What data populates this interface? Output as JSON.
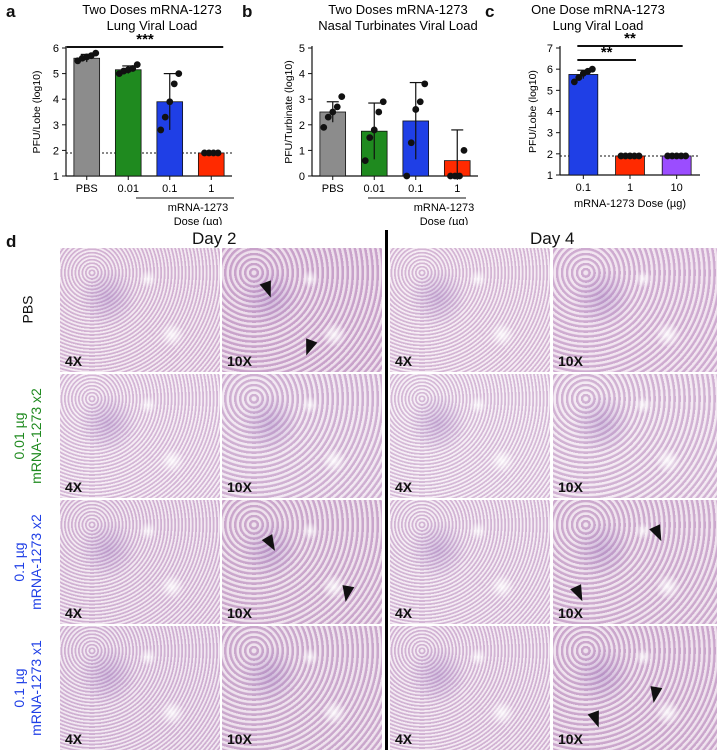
{
  "panels": {
    "a": "a",
    "b": "b",
    "c": "c",
    "d": "d"
  },
  "colors": {
    "pbs": "#8c8c8c",
    "dose001": "#1f8a1f",
    "dose01": "#1f3fe6",
    "dose1": "#ff2a00",
    "dose10": "#9b4dff"
  },
  "chart_data": [
    {
      "type": "bar",
      "title": "Two Doses mRNA-1273\nLung Viral Load",
      "ylabel": "PFU/Lobe (log10)",
      "xlabel": "mRNA-1273\nDose (µg)",
      "categories": [
        "PBS",
        "0.01",
        "0.1",
        "1"
      ],
      "values": [
        5.6,
        5.15,
        3.9,
        1.9
      ],
      "errors": [
        0.15,
        0.15,
        1.1,
        0.02
      ],
      "points": [
        [
          5.5,
          5.6,
          5.65,
          5.7,
          5.8
        ],
        [
          5.0,
          5.1,
          5.15,
          5.2,
          5.35
        ],
        [
          2.8,
          3.3,
          3.9,
          4.6,
          5.0
        ],
        [
          1.9,
          1.9,
          1.9,
          1.9
        ]
      ],
      "ylim": [
        1,
        6
      ],
      "yticks": [
        "1",
        "2",
        "3",
        "4",
        "5",
        "6"
      ],
      "lod": 1.9,
      "significance": [
        {
          "label": "***",
          "from": 0,
          "to": 3
        }
      ]
    },
    {
      "type": "bar",
      "title": "Two Doses mRNA-1273\nNasal Turbinates Viral Load",
      "ylabel": "PFU/Turbinate (log10)",
      "xlabel": "mRNA-1273\nDose (µg)",
      "categories": [
        "PBS",
        "0.01",
        "0.1",
        "1"
      ],
      "values": [
        2.5,
        1.75,
        2.15,
        0.6
      ],
      "errors": [
        0.4,
        1.1,
        1.5,
        1.2
      ],
      "points": [
        [
          1.9,
          2.3,
          2.5,
          2.7,
          3.1
        ],
        [
          0.6,
          1.5,
          1.8,
          2.5,
          2.9
        ],
        [
          0.0,
          1.3,
          2.6,
          2.9,
          3.6
        ],
        [
          0.0,
          0.0,
          0.0,
          1.0
        ]
      ],
      "ylim": [
        0,
        5
      ],
      "yticks": [
        "0",
        "1",
        "2",
        "3",
        "4",
        "5"
      ]
    },
    {
      "type": "bar",
      "title": "One Dose mRNA-1273\nLung Viral Load",
      "ylabel": "PFU/Lobe (log10)",
      "xlabel": "mRNA-1273 Dose (µg)",
      "categories": [
        "0.1",
        "1",
        "10"
      ],
      "values": [
        5.75,
        1.9,
        1.9
      ],
      "errors": [
        0.2,
        0.02,
        0.02
      ],
      "points": [
        [
          5.4,
          5.6,
          5.8,
          5.9,
          6.0
        ],
        [
          1.9,
          1.9,
          1.9,
          1.9,
          1.9
        ],
        [
          1.9,
          1.9,
          1.9,
          1.9,
          1.9
        ]
      ],
      "ylim": [
        1,
        7
      ],
      "yticks": [
        "1",
        "2",
        "3",
        "4",
        "5",
        "6",
        "7"
      ],
      "lod": 1.9,
      "significance": [
        {
          "label": "**",
          "from": 0,
          "to": 1
        },
        {
          "label": "**",
          "from": 0,
          "to": 2
        }
      ]
    }
  ],
  "histology": {
    "days": [
      "Day 2",
      "Day 4"
    ],
    "rows": [
      {
        "label1": "PBS",
        "label2": "",
        "color": "#111111"
      },
      {
        "label1": "0.01 µg",
        "label2": "mRNA-1273 x2",
        "color": "#1f8a1f"
      },
      {
        "label1": "0.1 µg",
        "label2": "mRNA-1273 x2",
        "color": "#1f3fe6"
      },
      {
        "label1": "0.1 µg",
        "label2": "mRNA-1273 x1",
        "color": "#1f3fe6"
      }
    ],
    "magnifications": [
      "4X",
      "10X",
      "4X",
      "10X"
    ]
  }
}
